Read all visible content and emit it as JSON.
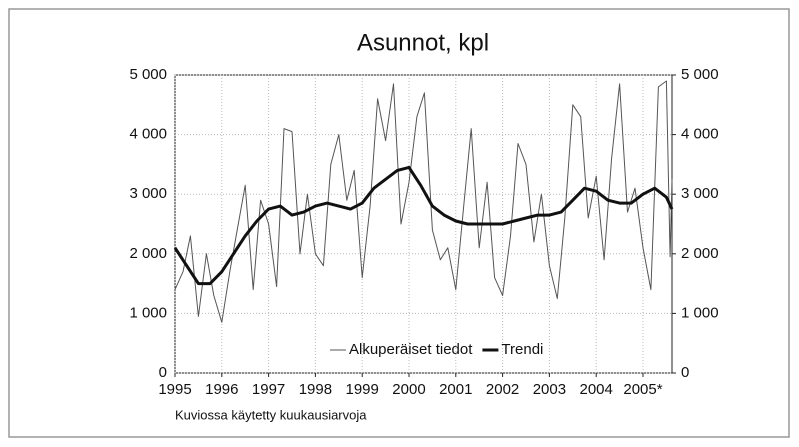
{
  "chart_data": {
    "type": "line",
    "title": "Asunnot, kpl",
    "note": "Kuviossa käytetty kuukausiarvoja",
    "xlim": [
      1995,
      2005.62
    ],
    "xticks": [
      1995,
      1996,
      1997,
      1998,
      1999,
      2000,
      2001,
      2002,
      2003,
      2004,
      {
        "value": 2005,
        "label": "2005*"
      }
    ],
    "ylim": [
      0,
      5000
    ],
    "yticks": [
      0,
      {
        "value": 1000,
        "label": "1 000"
      },
      {
        "value": 2000,
        "label": "2 000"
      },
      {
        "value": 3000,
        "label": "3 000"
      },
      {
        "value": 4000,
        "label": "4 000"
      },
      {
        "value": 5000,
        "label": "5 000"
      }
    ],
    "y2lim": [
      0,
      5000
    ],
    "y2ticks": [
      0,
      {
        "value": 1000,
        "label": "1 000"
      },
      {
        "value": 2000,
        "label": "2 000"
      },
      {
        "value": 3000,
        "label": "3 000"
      },
      {
        "value": 4000,
        "label": "4 000"
      },
      {
        "value": 5000,
        "label": "5 000"
      }
    ],
    "grid": true,
    "legend": "bottom",
    "series": [
      {
        "name": "Alkuperäiset tiedot",
        "color": "#555555",
        "width": 1,
        "x": [
          1995,
          1995.17,
          1995.33,
          1995.5,
          1995.67,
          1995.83,
          1996,
          1996.17,
          1996.33,
          1996.5,
          1996.67,
          1996.83,
          1997,
          1997.17,
          1997.33,
          1997.5,
          1997.67,
          1997.83,
          1998,
          1998.17,
          1998.33,
          1998.5,
          1998.67,
          1998.83,
          1999,
          1999.17,
          1999.33,
          1999.5,
          1999.67,
          1999.83,
          2000,
          2000.17,
          2000.33,
          2000.5,
          2000.67,
          2000.83,
          2001,
          2001.17,
          2001.33,
          2001.5,
          2001.67,
          2001.83,
          2002,
          2002.17,
          2002.33,
          2002.5,
          2002.67,
          2002.83,
          2003,
          2003.17,
          2003.33,
          2003.5,
          2003.67,
          2003.83,
          2004,
          2004.17,
          2004.33,
          2004.5,
          2004.67,
          2004.83,
          2005,
          2005.17,
          2005.33,
          2005.5,
          2005.58,
          2005.62
        ],
        "values": [
          1400,
          1700,
          2300,
          950,
          2000,
          1300,
          850,
          1700,
          2400,
          3150,
          1400,
          2900,
          2500,
          1450,
          4100,
          4050,
          2000,
          3000,
          2000,
          1800,
          3500,
          4000,
          2900,
          3400,
          1600,
          2800,
          4600,
          3900,
          4850,
          2500,
          3200,
          4300,
          4700,
          2400,
          1900,
          2100,
          1400,
          2800,
          4100,
          2100,
          3200,
          1600,
          1300,
          2300,
          3850,
          3500,
          2200,
          3000,
          1800,
          1250,
          2600,
          4500,
          4300,
          2600,
          3300,
          1900,
          3600,
          4850,
          2700,
          3100,
          2100,
          1400,
          4800,
          4900,
          1950,
          3250
        ]
      },
      {
        "name": "Trendi",
        "color": "#111111",
        "width": 3,
        "x": [
          1995,
          1995.25,
          1995.5,
          1995.75,
          1996,
          1996.25,
          1996.5,
          1996.75,
          1997,
          1997.25,
          1997.5,
          1997.75,
          1998,
          1998.25,
          1998.5,
          1998.75,
          1999,
          1999.25,
          1999.5,
          1999.75,
          2000,
          2000.25,
          2000.5,
          2000.75,
          2001,
          2001.25,
          2001.5,
          2001.75,
          2002,
          2002.25,
          2002.5,
          2002.75,
          2003,
          2003.25,
          2003.5,
          2003.75,
          2004,
          2004.25,
          2004.5,
          2004.75,
          2005,
          2005.25,
          2005.5,
          2005.62
        ],
        "values": [
          2100,
          1800,
          1500,
          1500,
          1700,
          2000,
          2300,
          2550,
          2750,
          2800,
          2650,
          2700,
          2800,
          2850,
          2800,
          2750,
          2850,
          3100,
          3250,
          3400,
          3450,
          3150,
          2800,
          2650,
          2550,
          2500,
          2500,
          2500,
          2500,
          2550,
          2600,
          2650,
          2650,
          2700,
          2900,
          3100,
          3050,
          2900,
          2850,
          2850,
          3000,
          3100,
          2950,
          2750
        ]
      }
    ]
  }
}
